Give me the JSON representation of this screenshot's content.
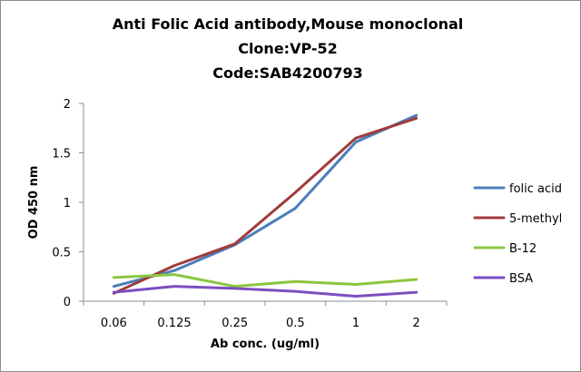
{
  "chart_data": {
    "type": "line",
    "title_lines": [
      "Anti Folic Acid antibody,Mouse monoclonal",
      "Clone:VP-52",
      "Code:SAB4200793"
    ],
    "xlabel": "Ab conc. (ug/ml)",
    "ylabel": "OD 450 nm",
    "categories": [
      "0.06",
      "0.125",
      "0.25",
      "0.5",
      "1",
      "2"
    ],
    "ylim": [
      0,
      2
    ],
    "yticks": [
      0,
      0.5,
      1,
      1.5,
      2
    ],
    "ytick_labels": [
      "0",
      "0.5",
      "1",
      "1.5",
      "2"
    ],
    "grid": false,
    "legend_position": "right",
    "series": [
      {
        "name": "folic acid",
        "color": "#4A7EBB",
        "values": [
          0.15,
          0.31,
          0.57,
          0.94,
          1.61,
          1.88
        ]
      },
      {
        "name": "5-methyl",
        "color": "#A03C3C",
        "values": [
          0.08,
          0.36,
          0.58,
          1.1,
          1.65,
          1.85
        ]
      },
      {
        "name": "B-12",
        "color": "#8CC63F",
        "values": [
          0.24,
          0.27,
          0.15,
          0.2,
          0.17,
          0.22
        ]
      },
      {
        "name": "BSA",
        "color": "#7B4FBE",
        "values": [
          0.09,
          0.15,
          0.13,
          0.1,
          0.05,
          0.09
        ]
      }
    ]
  }
}
